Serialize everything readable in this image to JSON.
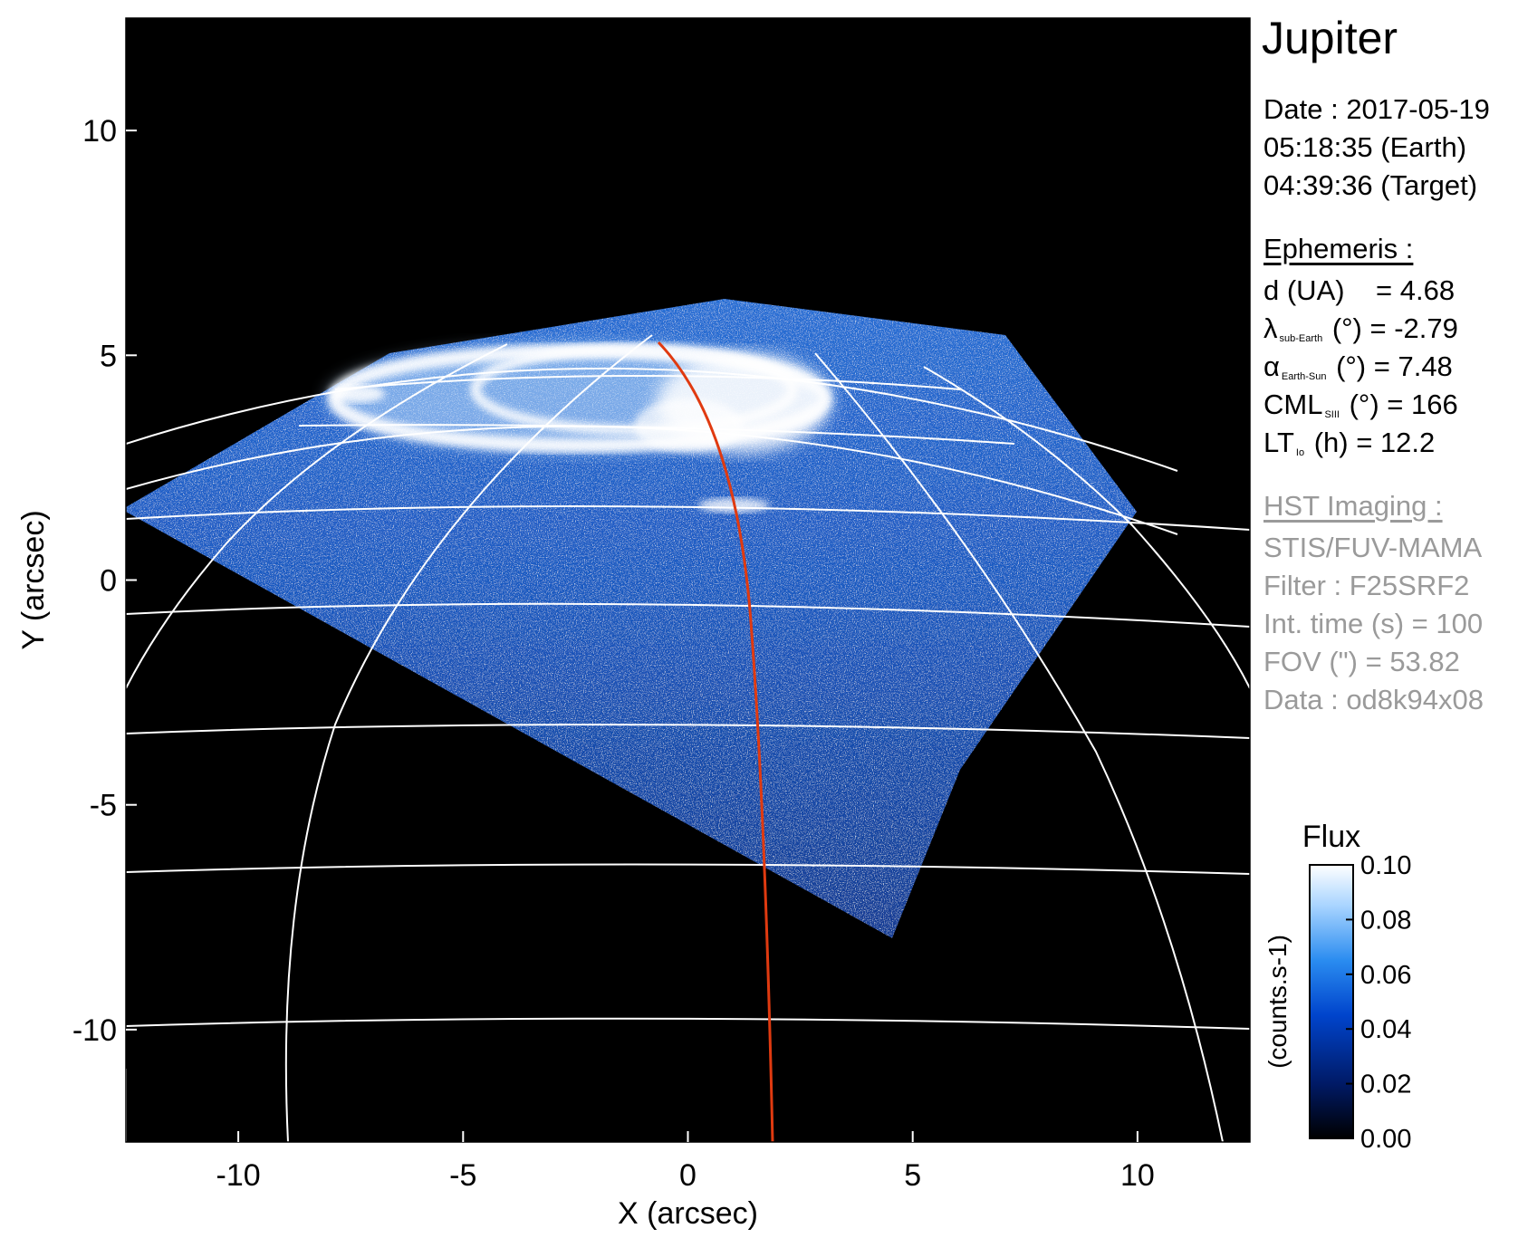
{
  "image": {
    "xlabel": "X (arcsec)",
    "ylabel": "Y (arcsec)",
    "xlim": [
      -12.5,
      12.5
    ],
    "ylim": [
      -12.5,
      12.5
    ],
    "xticks": [
      -10,
      -5,
      0,
      5,
      10
    ],
    "yticks": [
      10,
      5,
      0,
      -5,
      -10
    ],
    "tick_labels_x": [
      "-10",
      "-5",
      "0",
      "5",
      "10"
    ],
    "tick_labels_y": [
      "10",
      "5",
      "0",
      "-5",
      "-10"
    ],
    "background_color": "#000000",
    "grid_color": "#ffffff",
    "track_color": "#e03a10"
  },
  "info": {
    "target": "Jupiter",
    "date_line": "Date : 2017-05-19",
    "earth_time": "05:18:35 (Earth)",
    "target_time": "04:39:36 (Target)",
    "ephemeris_header": "Ephemeris :",
    "distance": {
      "label": "d (UA)",
      "value": "= 4.68"
    },
    "sub_earth_lat": {
      "symbol": "λ",
      "sub": "sub-Earth",
      "unit": "(°)",
      "value": "= -2.79"
    },
    "phase_angle": {
      "symbol": "α",
      "sub": "Earth-Sun",
      "unit": "(°)",
      "value": "= 7.48"
    },
    "cml": {
      "symbol": "CML",
      "sub": "SIII",
      "unit": "(°)",
      "value": "= 166"
    },
    "local_time": {
      "symbol": "LT",
      "sub": "Io",
      "unit": "(h)",
      "value": "= 12.2"
    },
    "hst_header": "HST Imaging :",
    "instrument": "STIS/FUV-MAMA",
    "filter": "Filter : F25SRF2",
    "int_time": "Int. time (s) = 100",
    "fov": "FOV (\") = 53.82",
    "dataset": "Data : od8k94x08"
  },
  "colorbar": {
    "title": "Flux",
    "unit_label": "(counts.s-1)",
    "ticks": [
      "0.10",
      "0.08",
      "0.06",
      "0.04",
      "0.02",
      "0.00"
    ],
    "tick_values": [
      0.1,
      0.08,
      0.06,
      0.04,
      0.02,
      0.0
    ],
    "colors": [
      "#000000",
      "#001a66",
      "#0044cc",
      "#2a8cf0",
      "#a8d4ff",
      "#ffffff"
    ]
  }
}
